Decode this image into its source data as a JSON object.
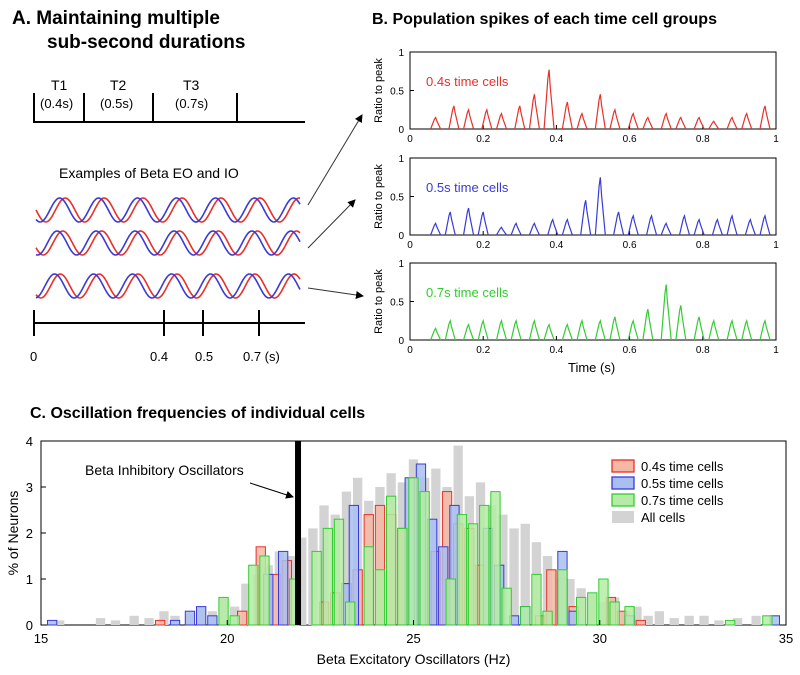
{
  "panelA": {
    "title_line1": "A.   Maintaining multiple",
    "title_line2": "sub-second durations",
    "intervals": [
      {
        "name": "T1",
        "duration": "(0.4s)",
        "color": "#e8302a"
      },
      {
        "name": "T2",
        "duration": "(0.5s)",
        "color": "#4472c4"
      },
      {
        "name": "T3",
        "duration": "(0.7s)",
        "color": "#2ca02c"
      }
    ],
    "examples_label": "Examples of Beta EO and IO",
    "oscillator_colors": {
      "eo": "#e8302a",
      "io": "#3a3ad8"
    },
    "time_axis_labels": [
      "0",
      "0.4",
      "0.5",
      "0.7 (s)"
    ],
    "time_axis_values": [
      0,
      0.4,
      0.5,
      0.7
    ]
  },
  "panelB": {
    "title": "B.  Population spikes of each time cell groups",
    "ylabel": "Ratio to peak",
    "xlabel": "Time (s)",
    "xticks": [
      "0",
      "0.2",
      "0.4",
      "0.6",
      "0.8",
      "1"
    ],
    "yticks": [
      "0",
      "0.5",
      "1"
    ],
    "xlim": [
      0,
      1
    ],
    "ylim": [
      0,
      1
    ],
    "groups": [
      {
        "label": "0.4s time cells",
        "color": "#e8302a",
        "peaks": [
          [
            0.07,
            0.15
          ],
          [
            0.12,
            0.3
          ],
          [
            0.16,
            0.25
          ],
          [
            0.21,
            0.25
          ],
          [
            0.25,
            0.2
          ],
          [
            0.3,
            0.3
          ],
          [
            0.34,
            0.45
          ],
          [
            0.38,
            0.77
          ],
          [
            0.43,
            0.35
          ],
          [
            0.47,
            0.2
          ],
          [
            0.52,
            0.45
          ],
          [
            0.56,
            0.25
          ],
          [
            0.61,
            0.2
          ],
          [
            0.65,
            0.15
          ],
          [
            0.7,
            0.2
          ],
          [
            0.74,
            0.15
          ],
          [
            0.79,
            0.15
          ],
          [
            0.83,
            0.1
          ],
          [
            0.88,
            0.15
          ],
          [
            0.92,
            0.2
          ],
          [
            0.97,
            0.3
          ]
        ]
      },
      {
        "label": "0.5s time cells",
        "color": "#3a3ad8",
        "peaks": [
          [
            0.07,
            0.15
          ],
          [
            0.11,
            0.3
          ],
          [
            0.16,
            0.35
          ],
          [
            0.2,
            0.3
          ],
          [
            0.25,
            0.1
          ],
          [
            0.29,
            0.15
          ],
          [
            0.34,
            0.15
          ],
          [
            0.39,
            0.2
          ],
          [
            0.43,
            0.2
          ],
          [
            0.48,
            0.45
          ],
          [
            0.52,
            0.75
          ],
          [
            0.57,
            0.3
          ],
          [
            0.61,
            0.25
          ],
          [
            0.66,
            0.25
          ],
          [
            0.7,
            0.15
          ],
          [
            0.75,
            0.25
          ],
          [
            0.79,
            0.2
          ],
          [
            0.84,
            0.2
          ],
          [
            0.88,
            0.25
          ],
          [
            0.93,
            0.2
          ],
          [
            0.97,
            0.25
          ]
        ]
      },
      {
        "label": "0.7s time cells",
        "color": "#33cc33",
        "peaks": [
          [
            0.07,
            0.15
          ],
          [
            0.11,
            0.25
          ],
          [
            0.16,
            0.2
          ],
          [
            0.2,
            0.25
          ],
          [
            0.25,
            0.25
          ],
          [
            0.29,
            0.25
          ],
          [
            0.34,
            0.25
          ],
          [
            0.38,
            0.2
          ],
          [
            0.43,
            0.2
          ],
          [
            0.47,
            0.25
          ],
          [
            0.52,
            0.25
          ],
          [
            0.56,
            0.3
          ],
          [
            0.61,
            0.25
          ],
          [
            0.65,
            0.4
          ],
          [
            0.7,
            0.72
          ],
          [
            0.74,
            0.45
          ],
          [
            0.79,
            0.3
          ],
          [
            0.83,
            0.25
          ],
          [
            0.88,
            0.25
          ],
          [
            0.92,
            0.25
          ],
          [
            0.97,
            0.25
          ]
        ]
      }
    ]
  },
  "panelC": {
    "title": "C. Oscillation frequencies of individual cells",
    "annotation": "Beta Inhibitory Oscillators",
    "inhibitory_freq": 21.9
  },
  "chart_data": {
    "type": "bar",
    "xlabel": "Beta Excitatory Oscillators (Hz)",
    "ylabel": "% of Neurons",
    "xlim": [
      15,
      35
    ],
    "ylim": [
      0,
      4
    ],
    "xticks": [
      "15",
      "20",
      "25",
      "30",
      "35"
    ],
    "yticks": [
      "0",
      "1",
      "2",
      "3",
      "4"
    ],
    "legend_position": "top-right",
    "bin_width": 0.25,
    "series": [
      {
        "name": "All cells",
        "color": "#d3d3d3",
        "edge": "#d3d3d3",
        "x": [
          15.5,
          16.6,
          17.0,
          17.5,
          17.9,
          18.3,
          18.6,
          19.0,
          19.3,
          19.6,
          19.9,
          20.2,
          20.5,
          20.8,
          21.1,
          21.4,
          21.7,
          22.0,
          22.3,
          22.6,
          22.9,
          23.2,
          23.5,
          23.8,
          24.1,
          24.4,
          24.7,
          25.0,
          25.3,
          25.6,
          25.9,
          26.2,
          26.5,
          26.8,
          27.1,
          27.4,
          27.7,
          28.0,
          28.3,
          28.6,
          28.9,
          29.2,
          29.5,
          29.8,
          30.1,
          30.4,
          30.7,
          31.0,
          31.3,
          31.6,
          32.0,
          32.4,
          32.8,
          33.2,
          33.7,
          34.2
        ],
        "values": [
          0.1,
          0.15,
          0.1,
          0.2,
          0.15,
          0.3,
          0.2,
          0.25,
          0.4,
          0.3,
          0.6,
          0.4,
          0.9,
          1.1,
          1.3,
          1.6,
          1.5,
          1.9,
          2.1,
          2.6,
          2.4,
          2.9,
          3.2,
          2.7,
          3.0,
          3.3,
          3.1,
          3.6,
          3.2,
          3.4,
          3.0,
          3.9,
          2.8,
          3.1,
          2.6,
          2.4,
          2.1,
          2.2,
          1.8,
          1.5,
          1.2,
          1.0,
          0.8,
          0.7,
          0.5,
          0.6,
          0.3,
          0.4,
          0.2,
          0.3,
          0.15,
          0.2,
          0.2,
          0.1,
          0.15,
          0.2
        ]
      },
      {
        "name": "0.4s time cells",
        "color": "#f4b8a4",
        "edge": "#e8302a",
        "x": [
          18.2,
          20.4,
          20.9,
          21.3,
          21.6,
          22.6,
          22.9,
          23.2,
          23.5,
          23.8,
          24.1,
          24.4,
          24.7,
          25.6,
          25.9,
          26.2,
          26.5,
          26.8,
          28.4,
          28.7,
          29.0,
          29.3,
          30.3,
          30.6,
          31.1
        ],
        "values": [
          0.1,
          0.3,
          1.7,
          1.1,
          1.4,
          0.5,
          0.7,
          0.9,
          1.2,
          2.4,
          2.6,
          2.4,
          2.1,
          1.6,
          2.9,
          2.2,
          2.1,
          1.3,
          0.2,
          1.2,
          1.0,
          0.4,
          0.6,
          0.3,
          0.1
        ]
      },
      {
        "name": "0.5s time cells",
        "color": "#a8bff0",
        "edge": "#3a3ad8",
        "x": [
          15.3,
          18.6,
          19.0,
          19.3,
          19.6,
          21.1,
          21.5,
          23.2,
          23.4,
          24.9,
          25.2,
          25.5,
          25.8,
          26.1,
          27.0,
          27.3,
          27.7,
          28.0,
          29.0,
          29.3,
          30.8,
          34.7
        ],
        "values": [
          0.1,
          0.1,
          0.3,
          0.4,
          0.2,
          1.1,
          1.6,
          0.9,
          2.6,
          3.2,
          3.5,
          2.3,
          1.7,
          2.6,
          2.1,
          1.3,
          0.2,
          0.4,
          1.6,
          0.3,
          0.2,
          0.2
        ]
      },
      {
        "name": "0.7s time cells",
        "color": "#b5eca5",
        "edge": "#33cc33",
        "x": [
          19.9,
          20.2,
          20.7,
          21.0,
          21.8,
          22.4,
          22.7,
          23.0,
          23.3,
          23.8,
          24.1,
          24.4,
          24.7,
          25.0,
          25.3,
          26.0,
          26.3,
          26.6,
          26.9,
          27.2,
          27.5,
          28.0,
          28.3,
          28.6,
          29.0,
          29.5,
          29.8,
          30.1,
          30.4,
          30.8,
          33.5,
          34.5
        ],
        "values": [
          0.6,
          0.2,
          1.3,
          1.5,
          1.0,
          1.6,
          2.1,
          2.3,
          0.5,
          1.7,
          1.2,
          2.8,
          2.1,
          3.2,
          2.9,
          1.0,
          2.4,
          2.2,
          2.6,
          2.9,
          0.8,
          0.4,
          1.1,
          0.3,
          1.2,
          0.6,
          0.7,
          1.0,
          0.5,
          0.4,
          0.1,
          0.2
        ]
      }
    ]
  }
}
